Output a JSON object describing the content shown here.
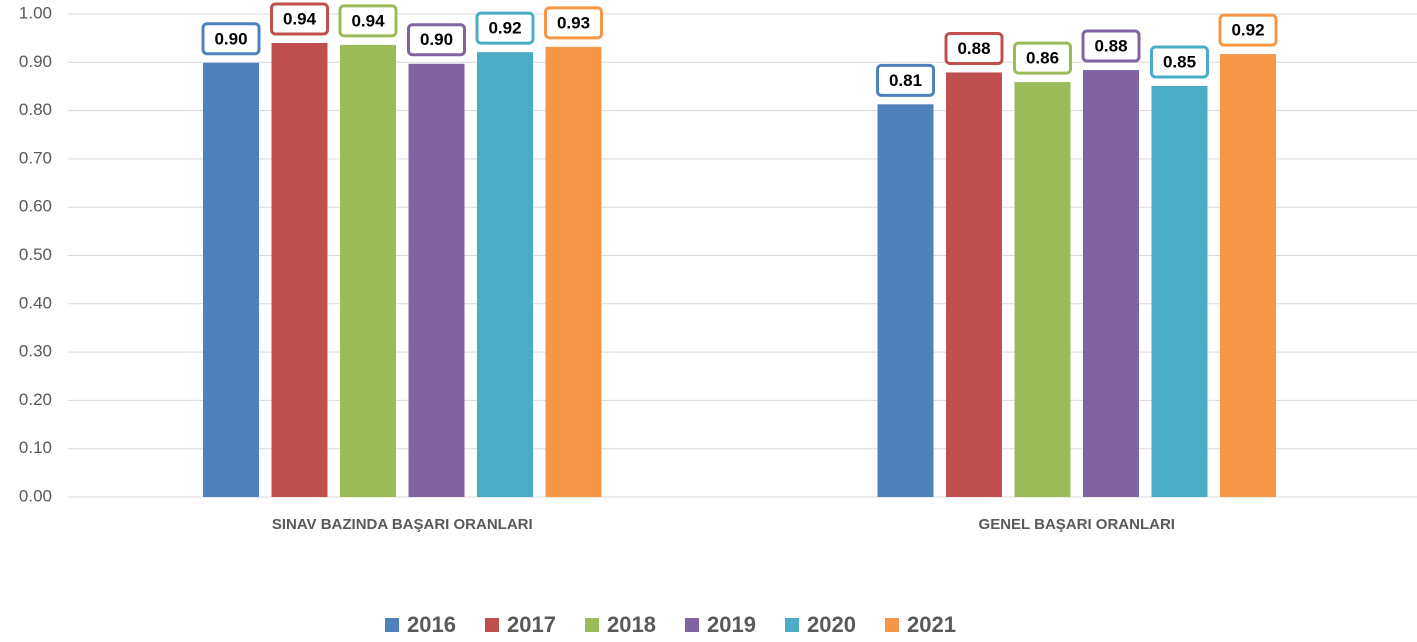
{
  "chart_data": {
    "type": "bar",
    "categories": [
      "SINAV BAZINDA BAŞARI ORANLARI",
      "GENEL BAŞARI ORANLARI"
    ],
    "series": [
      {
        "name": "2016",
        "color": "#4f81bd",
        "values": [
          0.899,
          0.813
        ],
        "value_labels": [
          "0.90",
          "0.81"
        ]
      },
      {
        "name": "2017",
        "color": "#c0504d",
        "values": [
          0.94,
          0.879
        ],
        "value_labels": [
          "0.94",
          "0.88"
        ]
      },
      {
        "name": "2018",
        "color": "#9bbb59",
        "values": [
          0.936,
          0.859
        ],
        "value_labels": [
          "0.94",
          "0.86"
        ]
      },
      {
        "name": "2019",
        "color": "#8064a2",
        "values": [
          0.897,
          0.884
        ],
        "value_labels": [
          "0.90",
          "0.88"
        ]
      },
      {
        "name": "2020",
        "color": "#4bacc6",
        "values": [
          0.921,
          0.851
        ],
        "value_labels": [
          "0.92",
          "0.85"
        ]
      },
      {
        "name": "2021",
        "color": "#f79646",
        "values": [
          0.932,
          0.917
        ],
        "value_labels": [
          "0.93",
          "0.92"
        ]
      }
    ],
    "ylim": [
      0,
      1
    ],
    "yticks": [
      {
        "value": 0,
        "label": "0.00"
      },
      {
        "value": 0.1,
        "label": "0.10"
      },
      {
        "value": 0.2,
        "label": "0.20"
      },
      {
        "value": 0.3,
        "label": "0.30"
      },
      {
        "value": 0.4,
        "label": "0.40"
      },
      {
        "value": 0.5,
        "label": "0.50"
      },
      {
        "value": 0.6,
        "label": "0.60"
      },
      {
        "value": 0.7,
        "label": "0.70"
      },
      {
        "value": 0.8,
        "label": "0.80"
      },
      {
        "value": 0.9,
        "label": "0.90"
      },
      {
        "value": 1,
        "label": "1.00"
      }
    ],
    "grid": true,
    "legend": "bottom"
  }
}
